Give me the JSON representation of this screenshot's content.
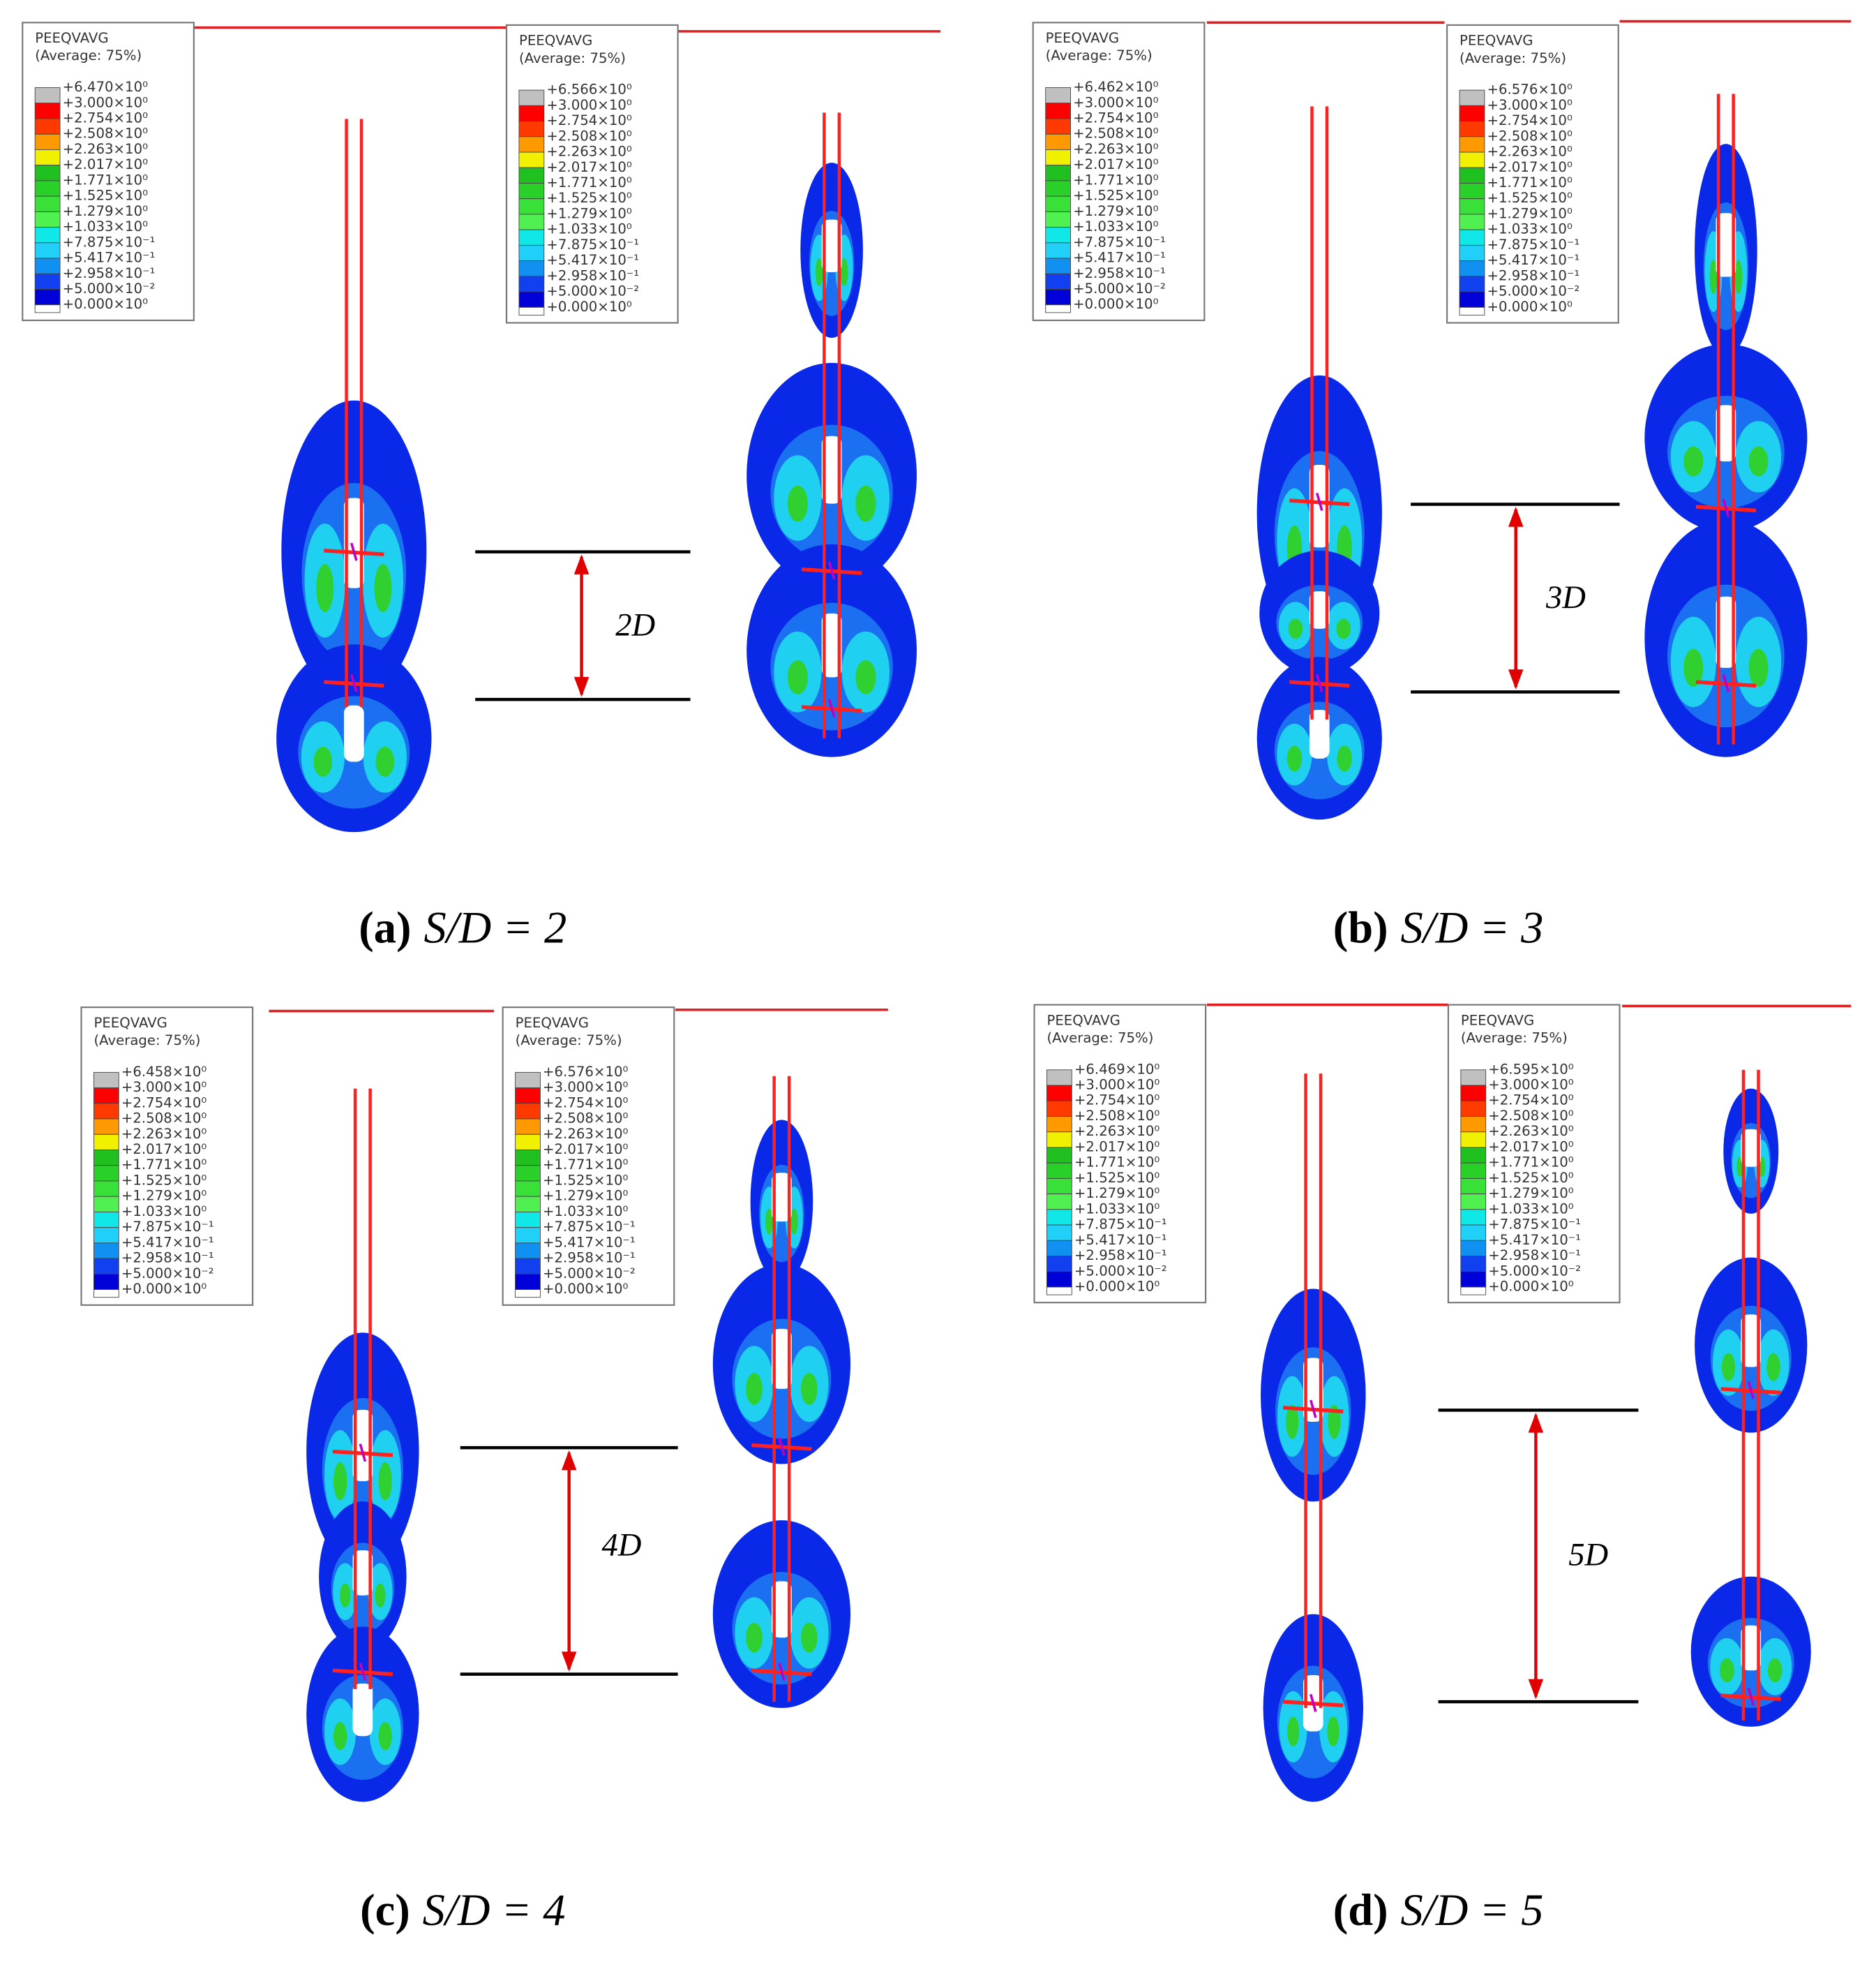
{
  "legend_title": "PEEQVAVG",
  "legend_subtitle": "(Average: 75%)",
  "legend_levels": [
    "+3.000×10⁰",
    "+2.754×10⁰",
    "+2.508×10⁰",
    "+2.263×10⁰",
    "+2.017×10⁰",
    "+1.771×10⁰",
    "+1.525×10⁰",
    "+1.279×10⁰",
    "+1.033×10⁰",
    "+7.875×10⁻¹",
    "+5.417×10⁻¹",
    "+2.958×10⁻¹",
    "+5.000×10⁻²",
    "+0.000×10⁰"
  ],
  "panels": [
    {
      "caption_label": "(a)",
      "caption_ratio": "S/D = 2",
      "spacing_label": "2D",
      "legends": [
        {
          "max": "+6.470×10⁰"
        },
        {
          "max": "+6.566×10⁰"
        }
      ]
    },
    {
      "caption_label": "(b)",
      "caption_ratio": "S/D = 3",
      "spacing_label": "3D",
      "legends": [
        {
          "max": "+6.462×10⁰"
        },
        {
          "max": "+6.576×10⁰"
        }
      ]
    },
    {
      "caption_label": "(c)",
      "caption_ratio": "S/D = 4",
      "spacing_label": "4D",
      "legends": [
        {
          "max": "+6.458×10⁰"
        },
        {
          "max": "+6.576×10⁰"
        }
      ]
    },
    {
      "caption_label": "(d)",
      "caption_ratio": "S/D = 5",
      "spacing_label": "5D",
      "legends": [
        {
          "max": "+6.469×10⁰"
        },
        {
          "max": "+6.595×10⁰"
        }
      ]
    }
  ]
}
